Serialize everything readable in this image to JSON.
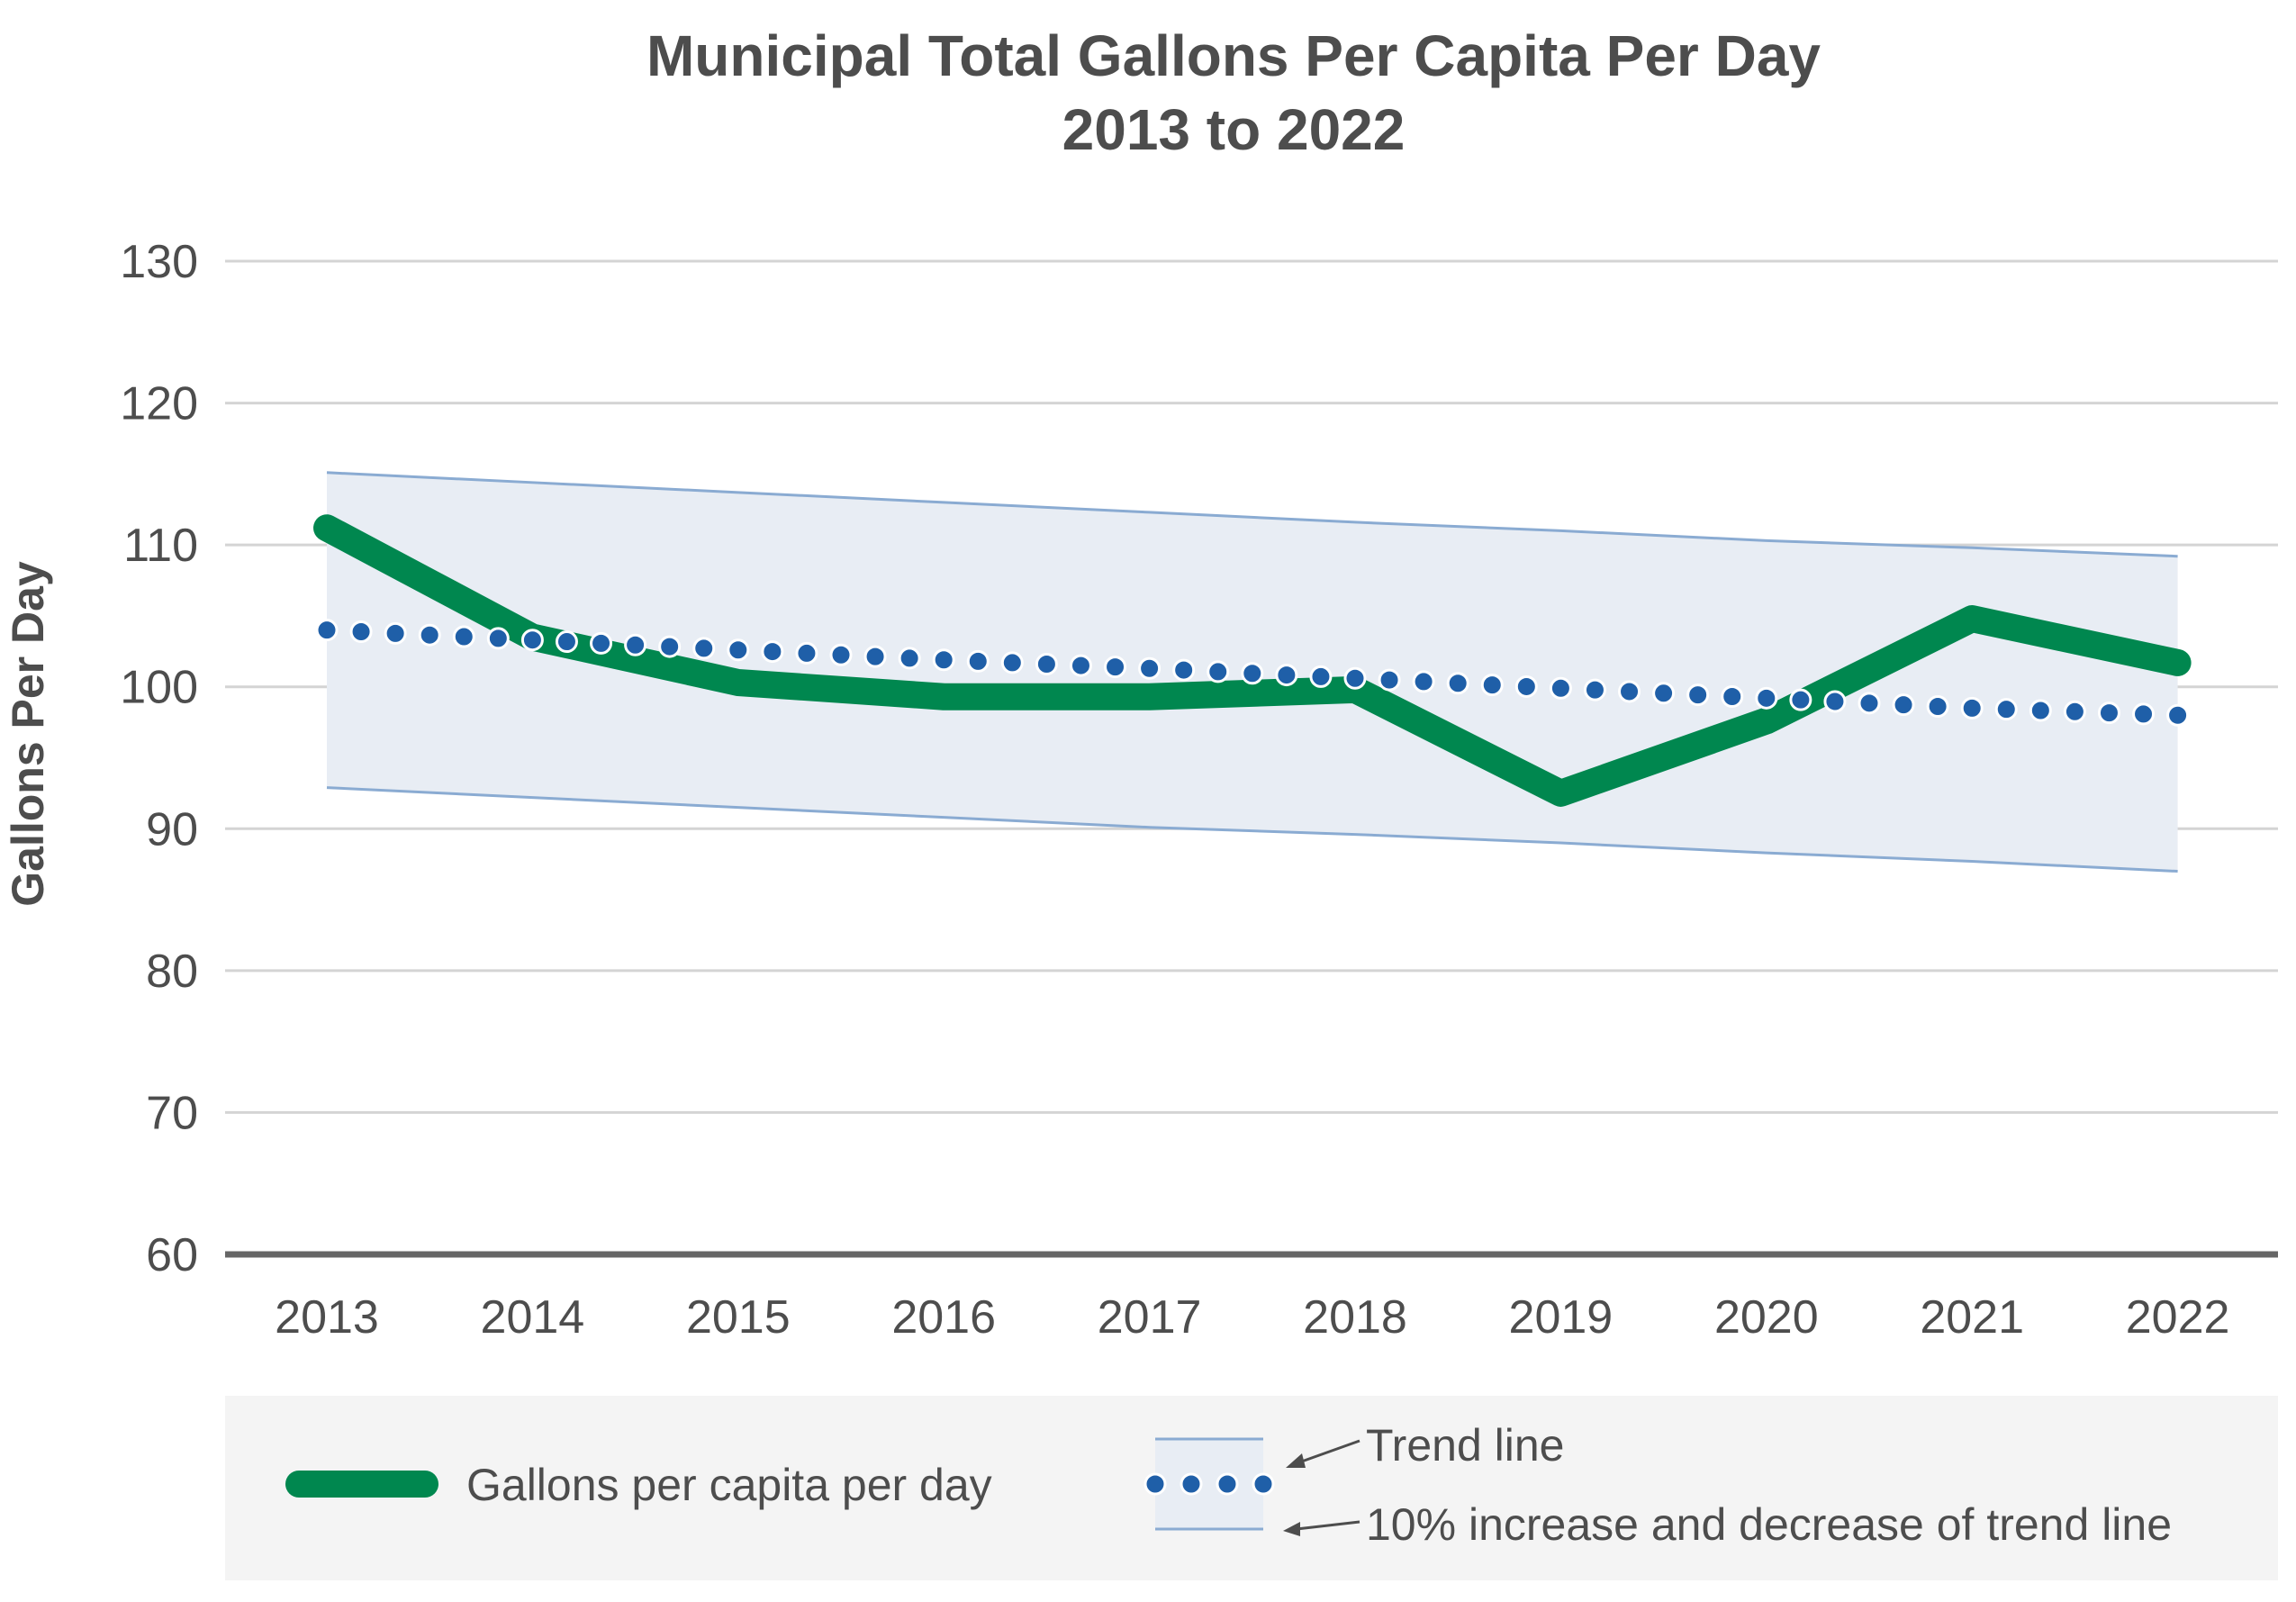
{
  "chart_data": {
    "type": "line",
    "title": [
      "Municipal Total Gallons Per Capita Per Day",
      "2013 to 2022"
    ],
    "xlabel": "",
    "ylabel": "Gallons Per Day",
    "ylim": [
      60,
      130
    ],
    "yticks": [
      60,
      70,
      80,
      90,
      100,
      110,
      120,
      130
    ],
    "grid": true,
    "categories": [
      "2013",
      "2014",
      "2015",
      "2016",
      "2017",
      "2018",
      "2019",
      "2020",
      "2021",
      "2022"
    ],
    "series": [
      {
        "name": "Gallons per capita per day",
        "style": "solid-thick",
        "color": "#00874f",
        "values": [
          111.2,
          103.5,
          100.3,
          99.3,
          99.3,
          99.8,
          92.5,
          97.6,
          104.8,
          101.7
        ]
      },
      {
        "name": "Trend line",
        "style": "dotted",
        "color": "#1f5fa8",
        "values": [
          104.0,
          103.3,
          102.6,
          101.9,
          101.3,
          100.6,
          99.9,
          99.2,
          98.5,
          98.0
        ]
      }
    ],
    "band": {
      "name": "10% increase and decrease of trend line",
      "upper": [
        115.1,
        114.4,
        113.7,
        113.0,
        112.3,
        111.6,
        111.0,
        110.3,
        109.8,
        109.2
      ],
      "lower": [
        92.9,
        92.2,
        91.5,
        90.8,
        90.1,
        89.6,
        89.0,
        88.3,
        87.7,
        87.0
      ],
      "fill": "#e8edf4",
      "line_color": "#8aabd2"
    },
    "legend": {
      "position": "bottom",
      "items": [
        {
          "label": "Gallons per capita per day"
        },
        {
          "label": "Trend line"
        },
        {
          "label": "10% increase and decrease of trend line"
        }
      ]
    }
  }
}
